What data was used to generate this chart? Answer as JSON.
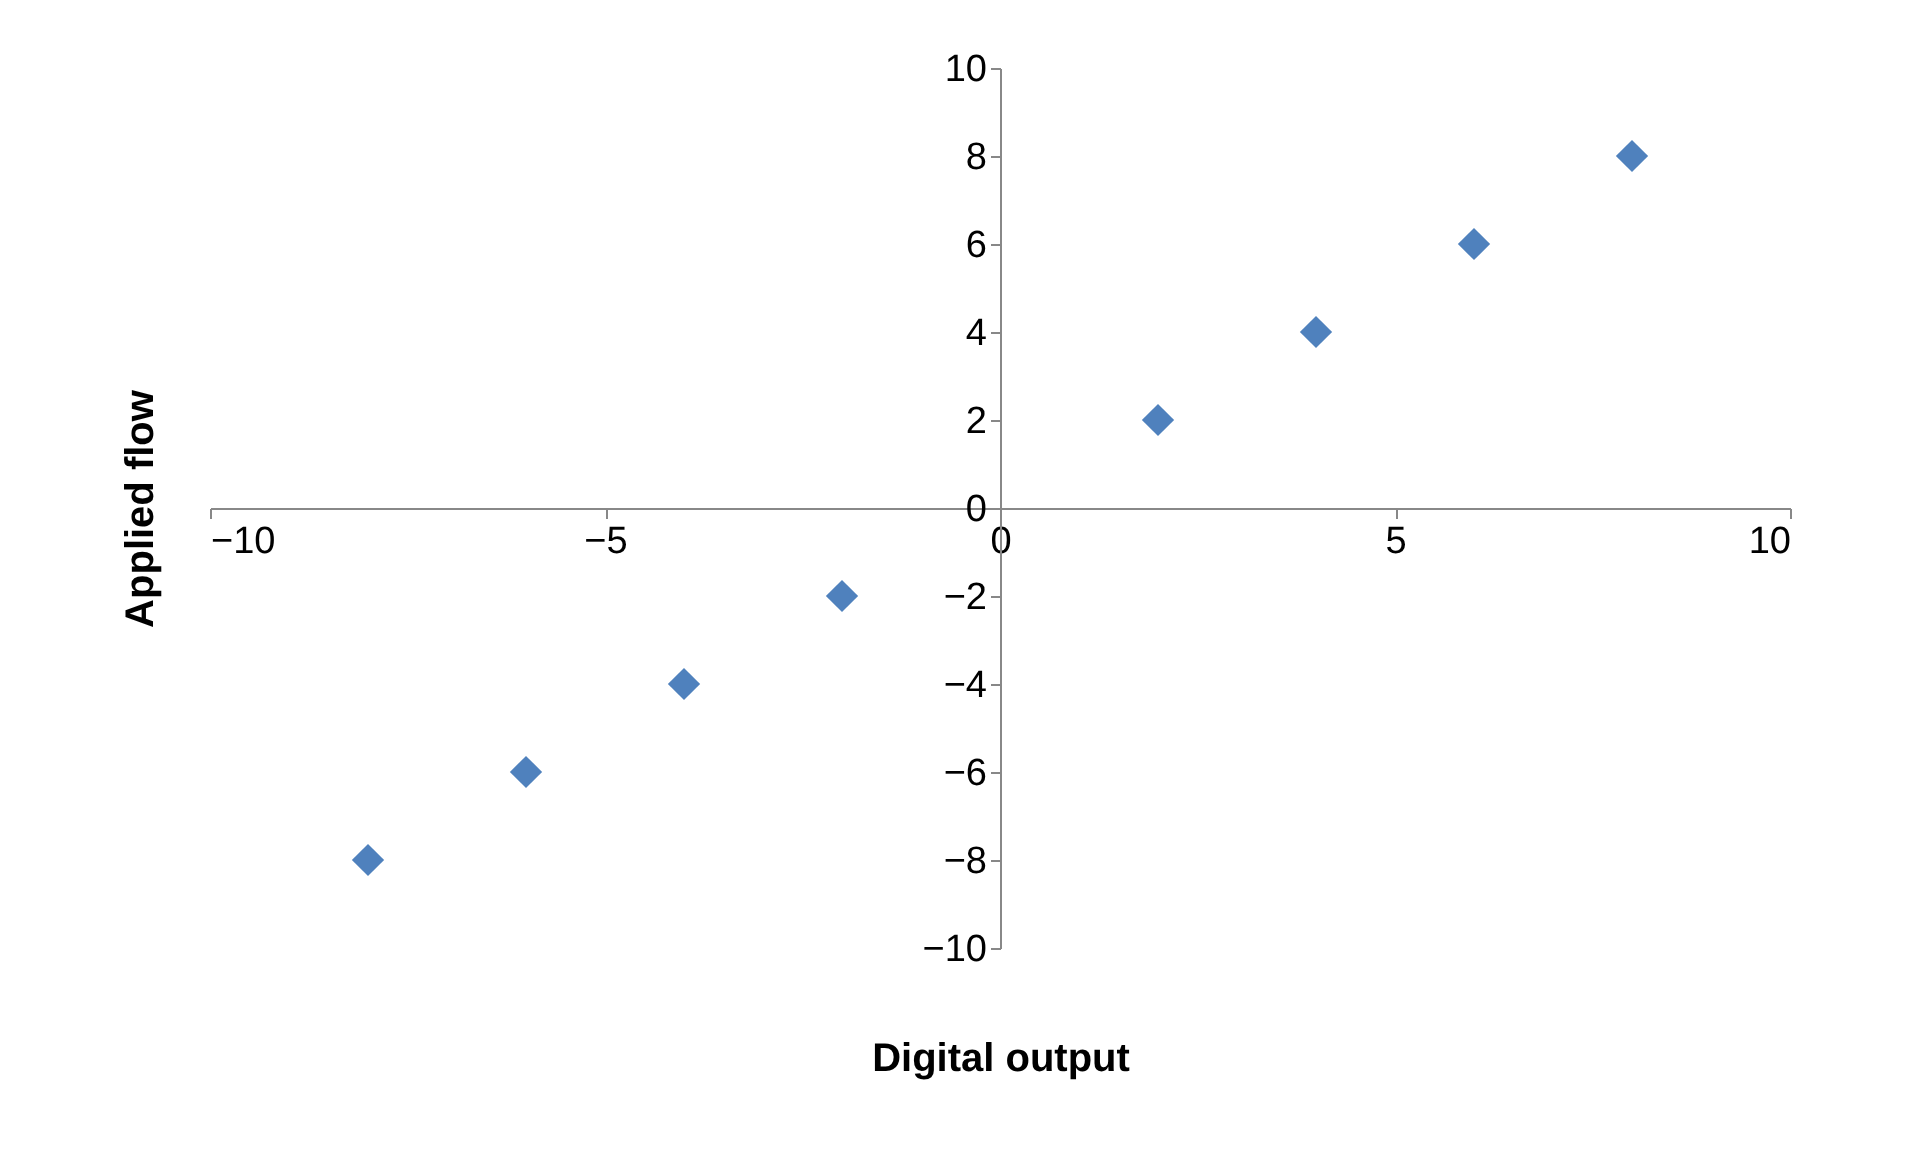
{
  "chart_data": {
    "type": "scatter",
    "xlabel": "Digital output",
    "ylabel": "Applied flow",
    "x": [
      -8,
      -6,
      -4,
      -2,
      2,
      4,
      6,
      8
    ],
    "series": [
      {
        "color": "#4f81bd",
        "values": [
          -8,
          -6,
          -4,
          -2,
          2,
          4,
          6,
          8
        ]
      }
    ],
    "marker": "diamond",
    "xlim": [
      -10,
      10
    ],
    "xticks": [
      -10,
      -5,
      0,
      5,
      10
    ],
    "ylim": [
      -10,
      10
    ],
    "yticks": [
      -10,
      -8,
      -6,
      -4,
      -2,
      0,
      2,
      4,
      6,
      8,
      10
    ],
    "grid": false,
    "legend": false
  }
}
